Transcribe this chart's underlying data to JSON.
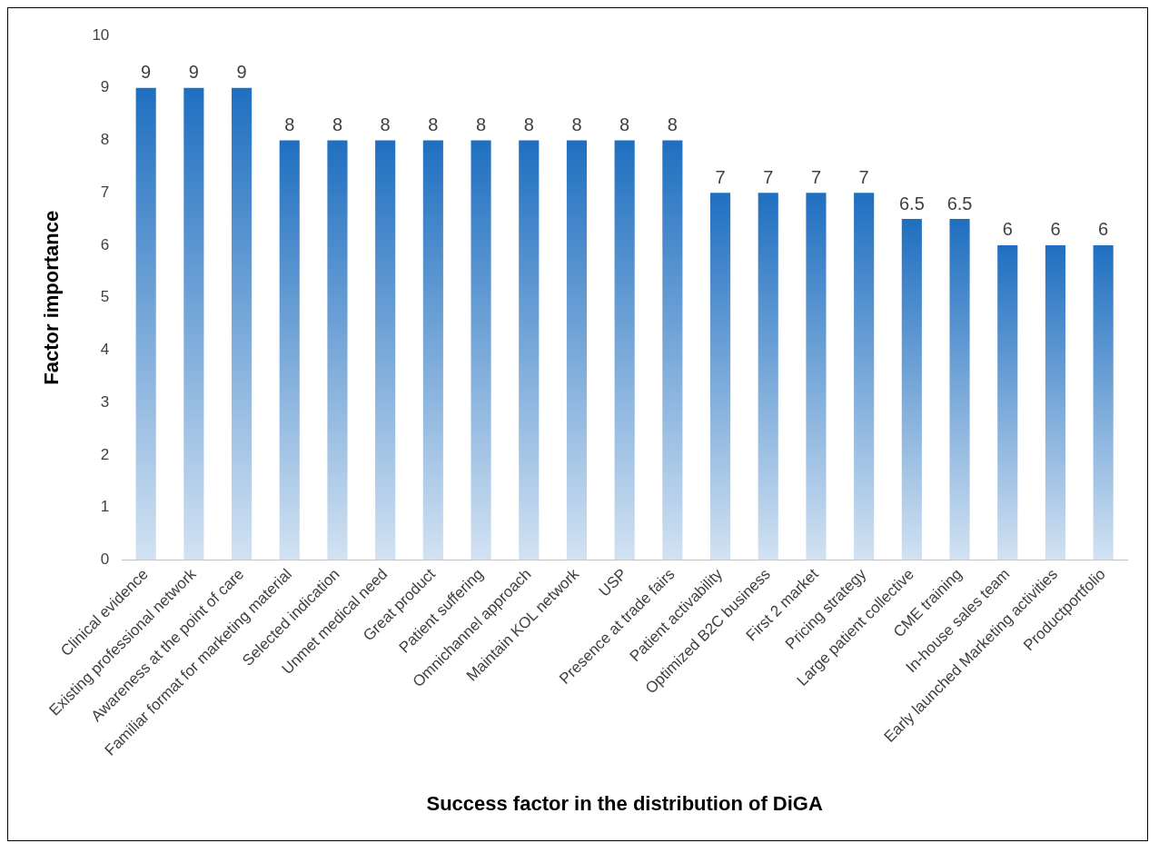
{
  "chart_data": {
    "type": "bar",
    "xlabel": "Success factor in the distribution of DiGA",
    "ylabel": "Factor importance",
    "categories": [
      "Clinical evidence",
      "Existing professional network",
      "Awareness at the point of care",
      "Familiar format for marketing material",
      "Selected indication",
      "Unmet medical need",
      "Great product",
      "Patient suffering",
      "Omnichannel approach",
      "Maintain KOL network",
      "USP",
      "Presence at trade fairs",
      "Patient activability",
      "Optimized B2C business",
      "First 2 market",
      "Pricing strategy",
      "Large patient collective",
      "CME training",
      "In-house sales team",
      "Early launched Marketing activities",
      "Productportfolio"
    ],
    "values": [
      9,
      9,
      9,
      8,
      8,
      8,
      8,
      8,
      8,
      8,
      8,
      8,
      7,
      7,
      7,
      7,
      6.5,
      6.5,
      6,
      6,
      6
    ],
    "color": "#1f6fc0",
    "ylim": [
      0,
      10
    ],
    "yticks": [
      0,
      1,
      2,
      3,
      4,
      5,
      6,
      7,
      8,
      9,
      10
    ],
    "grid": false,
    "legend": false,
    "data_labels": true
  }
}
